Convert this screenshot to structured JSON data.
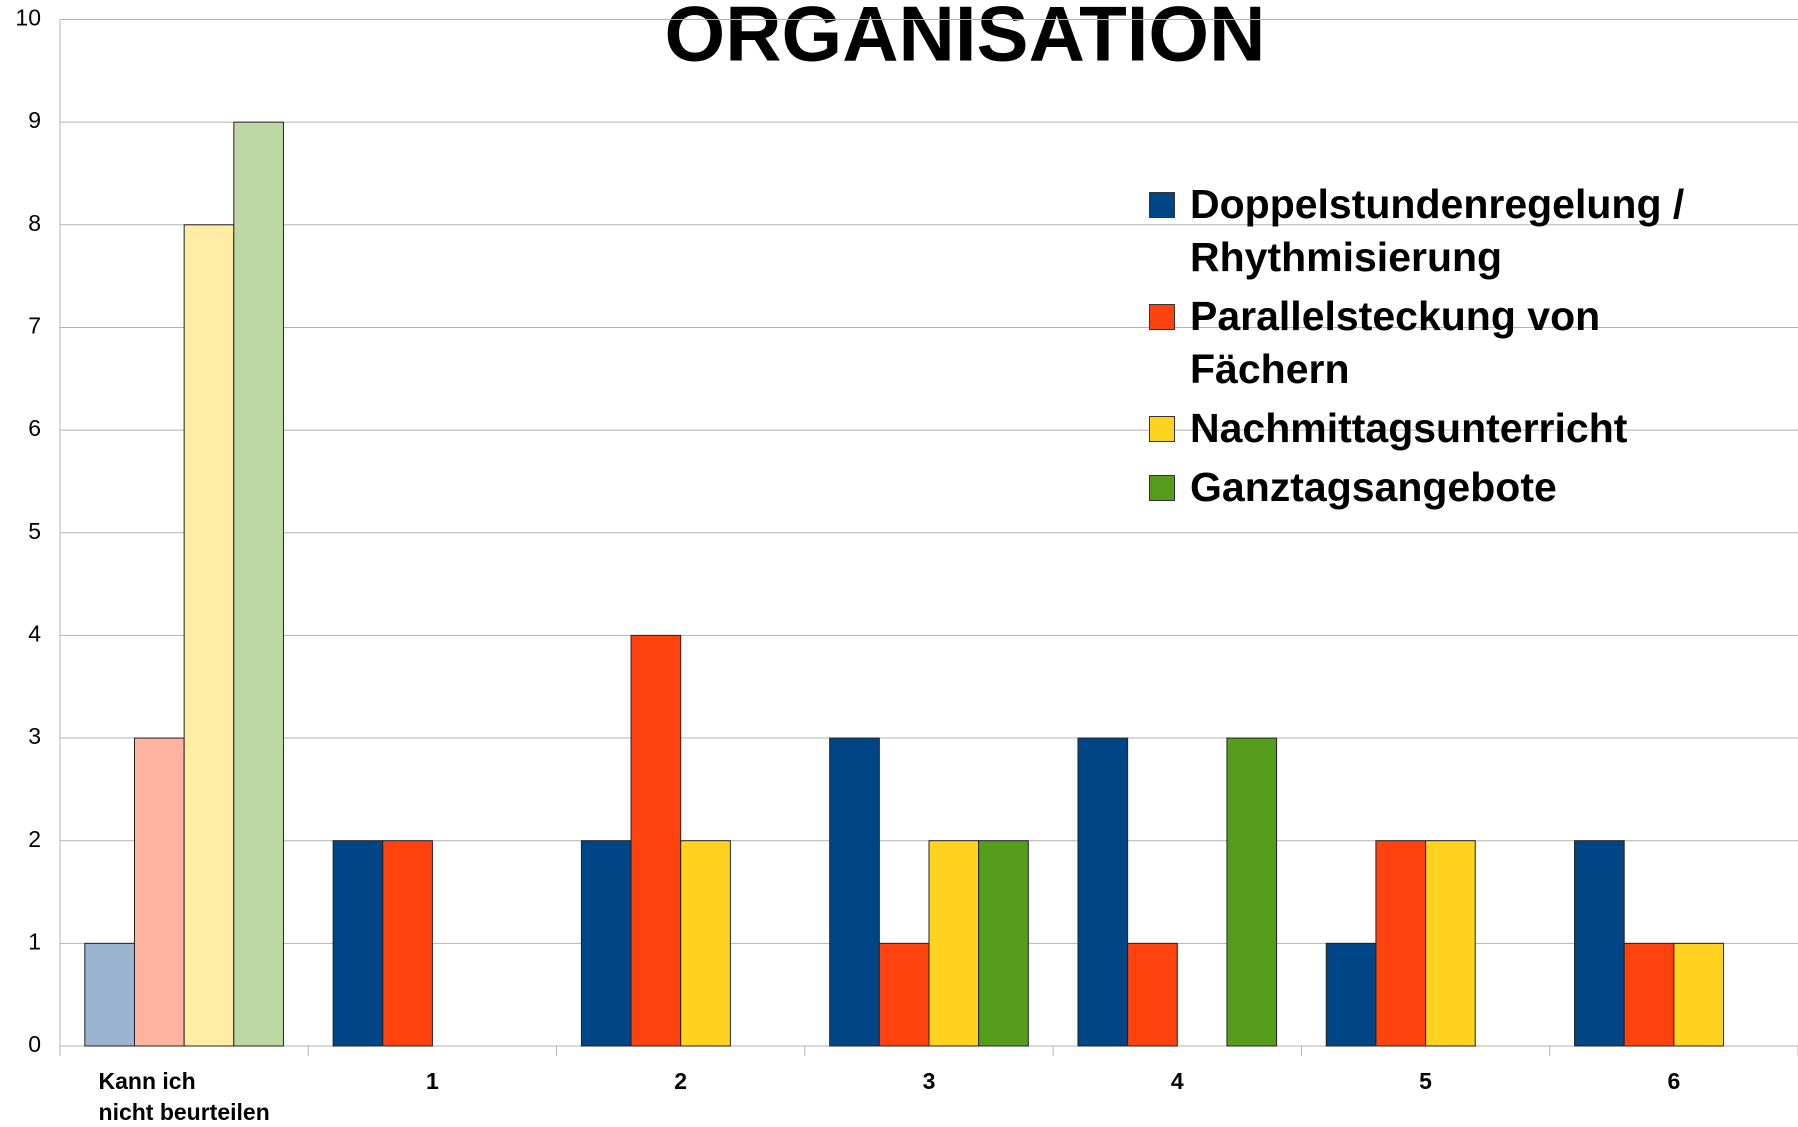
{
  "chart_data": {
    "type": "bar",
    "title": "ORGANISATION",
    "categories": [
      "Kann ich\nnicht beurteilen",
      "1",
      "2",
      "3",
      "4",
      "5",
      "6"
    ],
    "series": [
      {
        "name": "Doppelstundenregelung / Rhythmisierung",
        "color": "#004586",
        "light_color": "#9bb5d0",
        "values": [
          1,
          2,
          2,
          3,
          3,
          1,
          2
        ]
      },
      {
        "name": "Parallelsteckung von Fächern",
        "color": "#ff420e",
        "light_color": "#ffb3a0",
        "values": [
          3,
          2,
          4,
          1,
          1,
          2,
          1
        ]
      },
      {
        "name": "Nachmittagsunterricht",
        "color": "#ffd320",
        "light_color": "#ffeda6",
        "values": [
          8,
          0,
          2,
          2,
          0,
          2,
          1
        ]
      },
      {
        "name": "Ganztagsangebote",
        "color": "#579d1c",
        "light_color": "#bdd8a4",
        "values": [
          9,
          0,
          0,
          2,
          3,
          0,
          0
        ]
      }
    ],
    "light_categories": [
      0
    ],
    "ylim": [
      0,
      10
    ],
    "yticks": [
      0,
      1,
      2,
      3,
      4,
      5,
      6,
      7,
      8,
      9,
      10
    ],
    "grid": true,
    "legend": "top-right"
  }
}
